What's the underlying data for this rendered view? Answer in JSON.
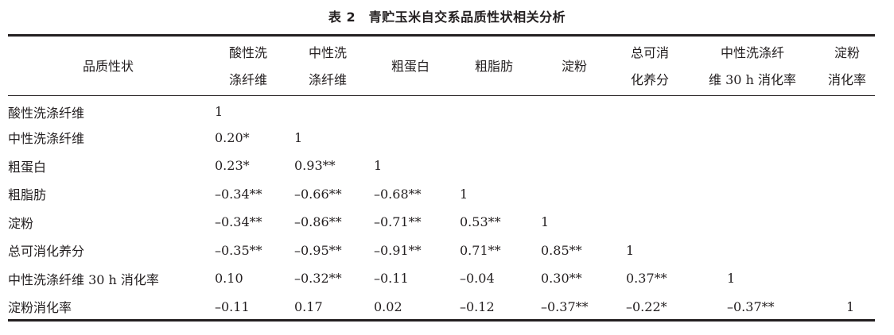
{
  "title": "表 2　青贮玉米自交系品质性状相关分析",
  "columns": [
    {
      "line1": "品质性状",
      "line2": ""
    },
    {
      "line1": "酸性洗",
      "line2": "涤纤维"
    },
    {
      "line1": "中性洗",
      "line2": "涤纤维"
    },
    {
      "line1": "粗蛋白",
      "line2": ""
    },
    {
      "line1": "粗脂肪",
      "line2": ""
    },
    {
      "line1": "淀粉",
      "line2": ""
    },
    {
      "line1": "总可消",
      "line2": "化养分"
    },
    {
      "line1": "中性洗涤纤",
      "line2": "维 30 h 消化率"
    },
    {
      "line1": "淀粉",
      "line2": "消化率"
    }
  ],
  "rows": [
    {
      "label": "酸性洗涤纤维",
      "values": [
        "1"
      ]
    },
    {
      "label": "中性洗涤纤维",
      "values": [
        "0.20*",
        "1"
      ]
    },
    {
      "label": "粗蛋白",
      "values": [
        "0.23*",
        "0.93**",
        "1"
      ]
    },
    {
      "label": "粗脂肪",
      "values": [
        "–0.34**",
        "–0.66**",
        "–0.68**",
        "1"
      ]
    },
    {
      "label": "淀粉",
      "values": [
        "–0.34**",
        "–0.86**",
        "–0.71**",
        "0.53**",
        "1"
      ]
    },
    {
      "label": "总可消化养分",
      "values": [
        "–0.35**",
        "–0.95**",
        "–0.91**",
        "0.71**",
        "0.85**",
        "1"
      ]
    },
    {
      "label": "中性洗涤纤维 30 h 消化率",
      "values": [
        "0.10",
        "–0.32**",
        "–0.11",
        "–0.04",
        "0.30**",
        "0.37**",
        "1"
      ]
    },
    {
      "label": "淀粉消化率",
      "values": [
        "–0.11",
        "0.17",
        "0.02",
        "–0.12",
        "–0.37**",
        "–0.22*",
        "–0.37**",
        "1"
      ]
    }
  ]
}
